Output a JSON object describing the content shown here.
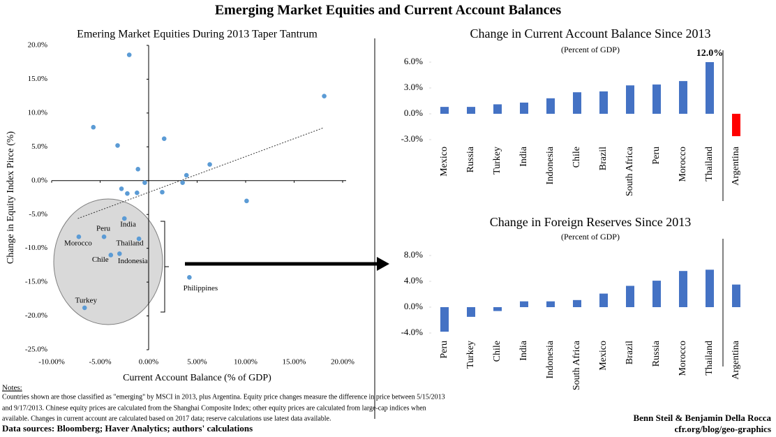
{
  "title": "Emerging Market Equities and Current Account Balances",
  "notes_heading": "Notes:",
  "notes": [
    "Countries shown are those classified as \"emerging\" by MSCI in 2013, plus Argentina. Equity price changes measure the difference in price between 5/15/2013",
    "and 9/17/2013. Chinese equity prices are calculated from the Shanghai Composite Index; other equity prices are calculated from large-cap indices when",
    "available. Changes in current account are calculated based on 2017 data; reserve calculations use latest data available."
  ],
  "sources": "Data sources: Bloomberg; Haver Analytics; authors' calculations",
  "credits": [
    "Benn Steil & Benjamin Della Rocca",
    "cfr.org/blog/geo-graphics"
  ],
  "chart_data": [
    {
      "type": "scatter",
      "title": "Emering Market Equities During 2013 Taper Tantrum",
      "x_label": "Current Account Balance (% of GDP)",
      "y_label": "Change in Equity Index Pirce (%)",
      "color": "#5b9bd5",
      "x": [
        -2.0,
        18.1,
        -5.7,
        -3.2,
        1.6,
        -1.1,
        6.3,
        -0.4,
        3.9,
        3.5,
        -2.8,
        -2.2,
        -1.2,
        1.4,
        10.1,
        -2.5,
        -4.6,
        -7.2,
        -1.0,
        -3.9,
        -3.0,
        4.2,
        -6.6
      ],
      "y": [
        18.6,
        12.5,
        7.9,
        5.2,
        6.2,
        1.7,
        2.4,
        -0.3,
        0.8,
        -0.3,
        -1.2,
        -1.9,
        -1.8,
        -1.7,
        -3.0,
        -5.6,
        -8.3,
        -8.3,
        -8.6,
        -11.0,
        -10.8,
        -14.3,
        -18.8
      ],
      "labels": [
        null,
        null,
        null,
        null,
        null,
        null,
        null,
        null,
        null,
        null,
        null,
        null,
        null,
        null,
        null,
        "India",
        "Peru",
        "Morocco",
        "Thailand",
        "Chile",
        "Indonesia",
        "Philippines",
        "Turkey"
      ],
      "trendline": {
        "x": [
          -7.3,
          18.0
        ],
        "y": [
          -5.6,
          7.8
        ]
      },
      "xlim": [
        -10,
        20
      ],
      "xticks": [
        {
          "value": -10,
          "label": "-10.00%"
        },
        {
          "value": -5,
          "label": "-5.00%"
        },
        {
          "value": 0,
          "label": "0.00%"
        },
        {
          "value": 5,
          "label": "5.00%"
        },
        {
          "value": 10,
          "label": "10.00%"
        },
        {
          "value": 15,
          "label": "15.00%"
        },
        {
          "value": 20,
          "label": "20.00%"
        }
      ],
      "ylim": [
        -25,
        20
      ],
      "yticks": [
        {
          "value": 20,
          "label": "20.0%"
        },
        {
          "value": 15,
          "label": "15.0%"
        },
        {
          "value": 10,
          "label": "10.0%"
        },
        {
          "value": 5,
          "label": "5.0%"
        },
        {
          "value": 0,
          "label": "0.0%"
        },
        {
          "value": -5,
          "label": "-5.0%"
        },
        {
          "value": -10,
          "label": "-10.0%"
        },
        {
          "value": -15,
          "label": "-15.0%"
        },
        {
          "value": -20,
          "label": "-20.0%"
        },
        {
          "value": -25,
          "label": "-25.0%"
        }
      ]
    },
    {
      "type": "bar",
      "title": "Change in Current Account Balance Since 2013",
      "subtitle": "(Percent of GDP)",
      "categories": [
        "Mexico",
        "Russia",
        "Turkey",
        "India",
        "Indonesia",
        "Chile",
        "Brazil",
        "South Africa",
        "Peru",
        "Morocco",
        "Thailand",
        "Argentina"
      ],
      "values": [
        0.8,
        0.8,
        1.1,
        1.3,
        1.8,
        2.5,
        2.6,
        3.3,
        3.4,
        3.8,
        12.0,
        -2.6
      ],
      "value_labels": [
        null,
        null,
        null,
        null,
        null,
        null,
        null,
        null,
        null,
        null,
        "12.0%",
        null
      ],
      "colors": [
        "#4472c4",
        "#4472c4",
        "#4472c4",
        "#4472c4",
        "#4472c4",
        "#4472c4",
        "#4472c4",
        "#4472c4",
        "#4472c4",
        "#4472c4",
        "#4472c4",
        "#ff0000"
      ],
      "ylim": [
        -3,
        6
      ],
      "yticks": [
        {
          "value": 6,
          "label": "6.0%"
        },
        {
          "value": 3,
          "label": "3.0%"
        },
        {
          "value": 0,
          "label": "0.0%"
        },
        {
          "value": -3,
          "label": "-3.0%"
        }
      ]
    },
    {
      "type": "bar",
      "title": "Change in Foreign Reserves Since 2013",
      "subtitle": "(Percent of GDP)",
      "categories": [
        "Peru",
        "Turkey",
        "Chile",
        "India",
        "Indonesia",
        "South Africa",
        "Mexico",
        "Brazil",
        "Russia",
        "Morocco",
        "Thailand",
        "Argentina"
      ],
      "values": [
        -3.8,
        -1.5,
        -0.6,
        0.9,
        0.9,
        1.1,
        2.1,
        3.3,
        4.1,
        5.6,
        5.8,
        3.5
      ],
      "colors": [
        "#4472c4",
        "#4472c4",
        "#4472c4",
        "#4472c4",
        "#4472c4",
        "#4472c4",
        "#4472c4",
        "#4472c4",
        "#4472c4",
        "#4472c4",
        "#4472c4",
        "#4472c4"
      ],
      "ylim": [
        -4,
        8
      ],
      "yticks": [
        {
          "value": 8,
          "label": "8.0%"
        },
        {
          "value": 4,
          "label": "4.0%"
        },
        {
          "value": 0,
          "label": "0.0%"
        },
        {
          "value": -4,
          "label": "-4.0%"
        }
      ]
    }
  ]
}
